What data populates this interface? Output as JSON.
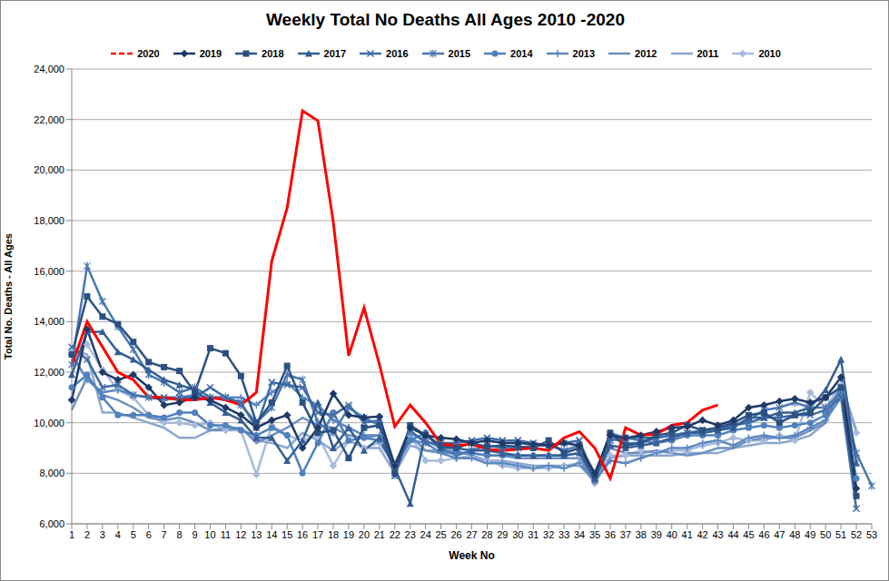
{
  "chart_data": {
    "type": "line",
    "title": "Weekly Total No Deaths All Ages 2010 -2020",
    "x_label": "Week No",
    "y_label": "Total No. Deaths - All Ages",
    "categories": [
      "1",
      "2",
      "3",
      "4",
      "5",
      "6",
      "7",
      "8",
      "9",
      "10",
      "11",
      "12",
      "13",
      "14",
      "15",
      "16",
      "17",
      "18",
      "19",
      "20",
      "21",
      "22",
      "23",
      "24",
      "25",
      "26",
      "27",
      "28",
      "29",
      "30",
      "31",
      "32",
      "33",
      "34",
      "35",
      "36",
      "37",
      "38",
      "39",
      "40",
      "41",
      "42",
      "43",
      "44",
      "45",
      "46",
      "47",
      "48",
      "49",
      "50",
      "51",
      "52",
      "53"
    ],
    "ylim": [
      6000,
      24000
    ],
    "yticks": [
      {
        "value": 6000,
        "label": "6,000"
      },
      {
        "value": 8000,
        "label": "8,000"
      },
      {
        "value": 10000,
        "label": "10,000"
      },
      {
        "value": 12000,
        "label": "12,000"
      },
      {
        "value": 14000,
        "label": "14,000"
      },
      {
        "value": 16000,
        "label": "16,000"
      },
      {
        "value": 18000,
        "label": "18,000"
      },
      {
        "value": 20000,
        "label": "20,000"
      },
      {
        "value": 22000,
        "label": "22,000"
      },
      {
        "value": 24000,
        "label": "24,000"
      }
    ],
    "grid": true,
    "legend": "top",
    "series": [
      {
        "name": "2020",
        "color": "#ff0000",
        "marker": "none",
        "values": [
          12250,
          14000,
          13000,
          12000,
          11700,
          11000,
          11000,
          10900,
          10900,
          11000,
          10900,
          10700,
          11200,
          16400,
          18500,
          22350,
          21950,
          17950,
          12650,
          14550,
          12300,
          9850,
          10700,
          10000,
          9150,
          9100,
          9150,
          8950,
          8900,
          8950,
          9000,
          8900,
          9400,
          9650,
          9000,
          7800,
          9800,
          9500,
          9550,
          9900,
          10000,
          10500,
          10700,
          null,
          null,
          null,
          null,
          null,
          null,
          null,
          null,
          null,
          null
        ]
      },
      {
        "name": "2019",
        "color": "#1f3a68",
        "marker": "diamond",
        "values": [
          10900,
          13700,
          12000,
          11700,
          11900,
          11400,
          10700,
          10800,
          11000,
          10900,
          10600,
          10300,
          9800,
          10100,
          10300,
          9000,
          9800,
          11150,
          10300,
          10200,
          10250,
          8300,
          9800,
          9500,
          9400,
          9350,
          9200,
          9300,
          9200,
          9200,
          9150,
          9100,
          9200,
          9100,
          8000,
          9500,
          9400,
          9500,
          9650,
          9800,
          9850,
          10100,
          9900,
          10100,
          10600,
          10700,
          10850,
          10950,
          10800,
          11000,
          11800,
          7400,
          null
        ]
      },
      {
        "name": "2018",
        "color": "#2b5182",
        "marker": "square",
        "values": [
          12700,
          15000,
          14200,
          13900,
          13200,
          12400,
          12200,
          12050,
          11200,
          12950,
          12750,
          11850,
          10000,
          10800,
          12250,
          10800,
          9600,
          9700,
          8600,
          9800,
          9900,
          8000,
          9900,
          9500,
          9100,
          9000,
          9200,
          9050,
          9100,
          9050,
          9000,
          9300,
          8800,
          9000,
          7900,
          9600,
          9100,
          9200,
          9500,
          9600,
          9900,
          9700,
          9800,
          10000,
          10300,
          10400,
          10000,
          10300,
          10400,
          11000,
          11400,
          7100,
          null
        ]
      },
      {
        "name": "2017",
        "color": "#355f94",
        "marker": "triangle",
        "values": [
          11900,
          13600,
          13600,
          12800,
          12500,
          12100,
          11700,
          11500,
          11300,
          10800,
          10400,
          10100,
          9400,
          9400,
          8500,
          9300,
          10800,
          9000,
          9800,
          8900,
          9400,
          8200,
          6800,
          9600,
          9000,
          9000,
          8900,
          8900,
          8800,
          8700,
          8700,
          8700,
          8700,
          8800,
          7800,
          9100,
          9000,
          9100,
          9200,
          9400,
          9600,
          9600,
          9700,
          9800,
          10200,
          10200,
          10400,
          10400,
          10600,
          11300,
          12500,
          8400,
          null
        ]
      },
      {
        "name": "2016",
        "color": "#3f6ba6",
        "marker": "x",
        "values": [
          13000,
          12500,
          11400,
          11500,
          11100,
          11000,
          11000,
          11000,
          11000,
          11400,
          11000,
          10800,
          9800,
          11600,
          11500,
          11400,
          10400,
          10300,
          10700,
          10000,
          10100,
          7900,
          9700,
          9200,
          9200,
          9200,
          9300,
          9400,
          9300,
          9300,
          9200,
          9100,
          9200,
          9300,
          7800,
          9300,
          9400,
          9400,
          9400,
          9500,
          9600,
          9700,
          9800,
          9900,
          10000,
          10200,
          10200,
          10300,
          10300,
          10500,
          11000,
          6600,
          null
        ]
      },
      {
        "name": "2015",
        "color": "#4a77b2",
        "marker": "star",
        "values": [
          12300,
          16200,
          14800,
          13800,
          12900,
          11900,
          11600,
          11200,
          11400,
          11000,
          11000,
          10700,
          10000,
          10600,
          11900,
          11700,
          10000,
          9600,
          10600,
          10200,
          9900,
          8100,
          9600,
          9300,
          9000,
          8700,
          8900,
          9100,
          9000,
          9000,
          9100,
          9100,
          8900,
          9100,
          7800,
          9400,
          9200,
          9200,
          9400,
          9500,
          9600,
          9600,
          9700,
          9900,
          10100,
          10500,
          10600,
          10800,
          10600,
          10600,
          11200,
          8800,
          7500
        ]
      },
      {
        "name": "2014",
        "color": "#4f81bd",
        "marker": "circle",
        "values": [
          11400,
          11900,
          11000,
          10300,
          10300,
          10300,
          10200,
          10400,
          10400,
          9900,
          9900,
          9700,
          9500,
          9800,
          9500,
          8000,
          9200,
          10400,
          9300,
          9400,
          9300,
          8300,
          9300,
          9600,
          8900,
          8800,
          8800,
          8700,
          8700,
          8700,
          8700,
          8700,
          8700,
          8800,
          7700,
          9600,
          9400,
          9300,
          9200,
          9300,
          9500,
          9500,
          9500,
          9700,
          9800,
          9900,
          9800,
          9900,
          10000,
          10300,
          11200,
          7800,
          null
        ]
      },
      {
        "name": "2013",
        "color": "#5a87c0",
        "marker": "plus",
        "values": [
          12700,
          11700,
          11200,
          11300,
          11100,
          11000,
          10900,
          11000,
          11100,
          11000,
          11000,
          11000,
          10700,
          11200,
          11600,
          11000,
          10700,
          10100,
          9800,
          9500,
          9500,
          8200,
          9300,
          9200,
          8800,
          8600,
          8600,
          8400,
          8400,
          8300,
          8200,
          8300,
          8200,
          8400,
          7700,
          8500,
          8400,
          8600,
          8800,
          9000,
          9000,
          9200,
          9300,
          9100,
          9400,
          9500,
          9400,
          9500,
          9800,
          10100,
          11000,
          8500,
          null
        ]
      },
      {
        "name": "2012",
        "color": "#6e8fc0",
        "marker": "none",
        "values": [
          10500,
          11800,
          11100,
          10900,
          10600,
          10200,
          10100,
          10200,
          10000,
          9700,
          9700,
          9800,
          9200,
          9500,
          9800,
          10200,
          9900,
          9800,
          9500,
          9400,
          9500,
          8400,
          9500,
          8900,
          8800,
          8800,
          8800,
          8700,
          8700,
          8600,
          8600,
          8600,
          8600,
          8600,
          7700,
          9000,
          8800,
          8800,
          8900,
          8800,
          8700,
          8800,
          9000,
          9000,
          9300,
          9400,
          9400,
          9400,
          9700,
          10000,
          11500,
          8700,
          null
        ]
      },
      {
        "name": "2011",
        "color": "#8da6cf",
        "marker": "none",
        "values": [
          12900,
          12700,
          10400,
          10400,
          10200,
          10000,
          9800,
          9400,
          9400,
          9700,
          9800,
          9800,
          9300,
          9200,
          9000,
          9600,
          9300,
          8900,
          9300,
          9000,
          9000,
          8000,
          9100,
          8900,
          8900,
          8900,
          8700,
          8500,
          8500,
          8400,
          8300,
          8300,
          8300,
          8300,
          7700,
          8600,
          8700,
          8700,
          8700,
          8700,
          8800,
          8800,
          8800,
          9000,
          9100,
          9200,
          9200,
          9300,
          9500,
          10000,
          11600,
          9700,
          null
        ]
      },
      {
        "name": "2010",
        "color": "#a9bbdc",
        "marker": "diamond",
        "values": [
          12900,
          13100,
          12100,
          11300,
          11000,
          10300,
          10000,
          10000,
          9900,
          10000,
          9700,
          9700,
          7950,
          9900,
          9500,
          9300,
          9500,
          8300,
          9300,
          9000,
          9200,
          8300,
          9500,
          8500,
          8500,
          8600,
          8700,
          8500,
          8300,
          8200,
          8200,
          8200,
          8300,
          8400,
          7600,
          8700,
          8700,
          8900,
          8800,
          8900,
          8900,
          9100,
          9200,
          9400,
          9300,
          9300,
          9500,
          9300,
          11200,
          10600,
          11500,
          9600,
          null
        ]
      }
    ]
  }
}
